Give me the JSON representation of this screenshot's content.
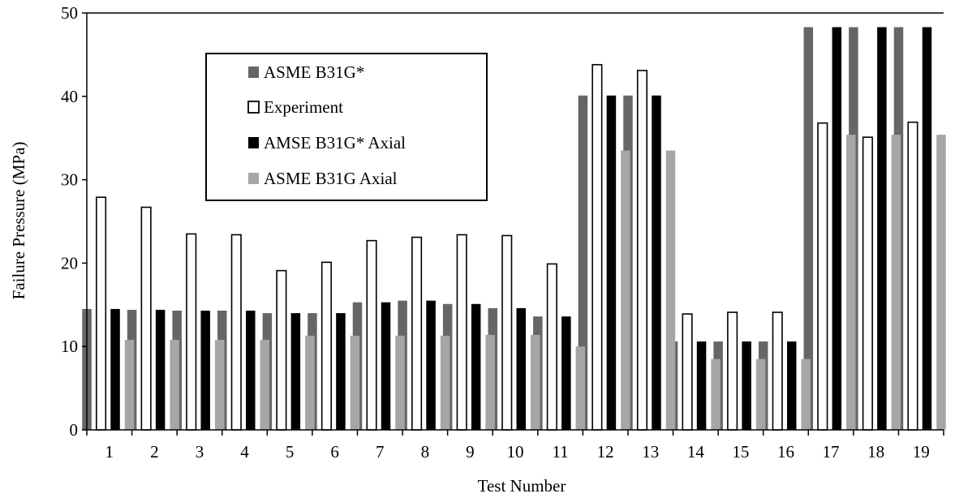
{
  "chart_data": {
    "type": "bar",
    "title": "",
    "xlabel": "Test Number",
    "ylabel": "Failure Pressure (MPa)",
    "ylim": [
      0,
      50
    ],
    "yticks": [
      0,
      10,
      20,
      30,
      40,
      50
    ],
    "grid": false,
    "legend_position": "top-left",
    "categories": [
      "1",
      "2",
      "3",
      "4",
      "5",
      "6",
      "7",
      "8",
      "9",
      "10",
      "11",
      "12",
      "13",
      "14",
      "15",
      "16",
      "17",
      "18",
      "19"
    ],
    "series": [
      {
        "name": "ASME B31G*",
        "color": "#666666",
        "style": "filled",
        "values": [
          14.5,
          14.4,
          14.3,
          14.3,
          14.0,
          14.0,
          15.3,
          15.5,
          15.1,
          14.6,
          13.6,
          40.1,
          40.1,
          10.6,
          10.6,
          10.6,
          48.3,
          48.3,
          48.3
        ]
      },
      {
        "name": "Experiment",
        "color": "#ffffff",
        "style": "outline",
        "values": [
          27.9,
          26.7,
          23.5,
          23.4,
          19.1,
          20.1,
          22.7,
          23.1,
          23.4,
          23.3,
          19.9,
          43.8,
          43.1,
          13.9,
          14.1,
          14.1,
          36.8,
          35.1,
          36.9
        ]
      },
      {
        "name": "AMSE B31G* Axial",
        "color": "#000000",
        "style": "filled",
        "values": [
          14.5,
          14.4,
          14.3,
          14.3,
          14.0,
          14.0,
          15.3,
          15.5,
          15.1,
          14.6,
          13.6,
          40.1,
          40.1,
          10.6,
          10.6,
          10.6,
          48.3,
          48.3,
          48.3
        ]
      },
      {
        "name": "ASME B31G Axial",
        "color": "#a6a6a6",
        "style": "filled",
        "values": [
          10.8,
          10.8,
          10.8,
          10.8,
          11.3,
          11.3,
          11.3,
          11.3,
          11.4,
          11.4,
          10.0,
          33.5,
          33.5,
          8.5,
          8.5,
          8.5,
          35.4,
          35.4,
          35.4
        ]
      }
    ]
  }
}
